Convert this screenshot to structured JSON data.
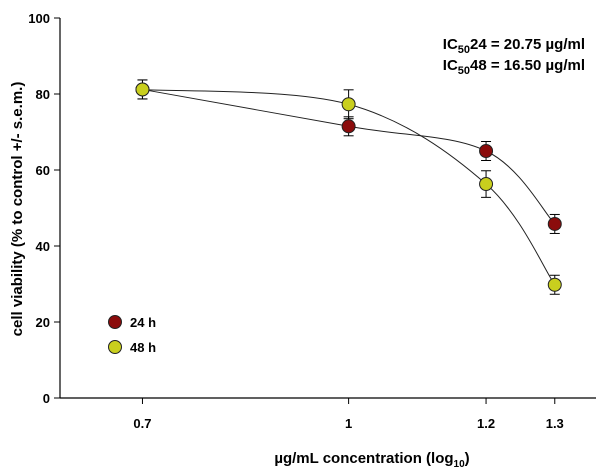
{
  "chart_data": {
    "type": "scatter",
    "xlabel_main": "µg/mL  concentration (log",
    "xlabel_sub": "10",
    "xlabel_end": ")",
    "ylabel": "cell viability (% to control +/- s.e.m.)",
    "xlim": [
      0.58,
      1.36
    ],
    "ylim": [
      0,
      100
    ],
    "x_ticks": [
      0.7,
      1,
      1.2,
      1.3
    ],
    "x_tick_labels": [
      "0.7",
      "1",
      "1.2",
      "1.3"
    ],
    "y_ticks": [
      0,
      20,
      40,
      60,
      80,
      100
    ],
    "y_tick_labels": [
      "0",
      "20",
      "40",
      "60",
      "80",
      "100"
    ],
    "grid": false,
    "legend_position": "bottom-left",
    "annotations": [
      {
        "pre": "IC",
        "sub": "50",
        "post": "24 = 20.75 µg/ml"
      },
      {
        "pre": "IC",
        "sub": "50",
        "post": "48 = 16.50 µg/ml"
      }
    ],
    "series": [
      {
        "name": "24 h",
        "color": "#8b0c0c",
        "x": [
          0.7,
          1,
          1.2,
          1.3
        ],
        "y": [
          81.2,
          71.5,
          65.0,
          45.8
        ],
        "err": [
          2.5,
          2.5,
          2.5,
          2.5
        ]
      },
      {
        "name": "48 h",
        "color": "#c9cf1e",
        "x": [
          0.7,
          1,
          1.2,
          1.3
        ],
        "y": [
          81.2,
          77.3,
          56.3,
          29.8
        ],
        "err": [
          2.5,
          3.8,
          3.5,
          2.5
        ]
      }
    ]
  }
}
